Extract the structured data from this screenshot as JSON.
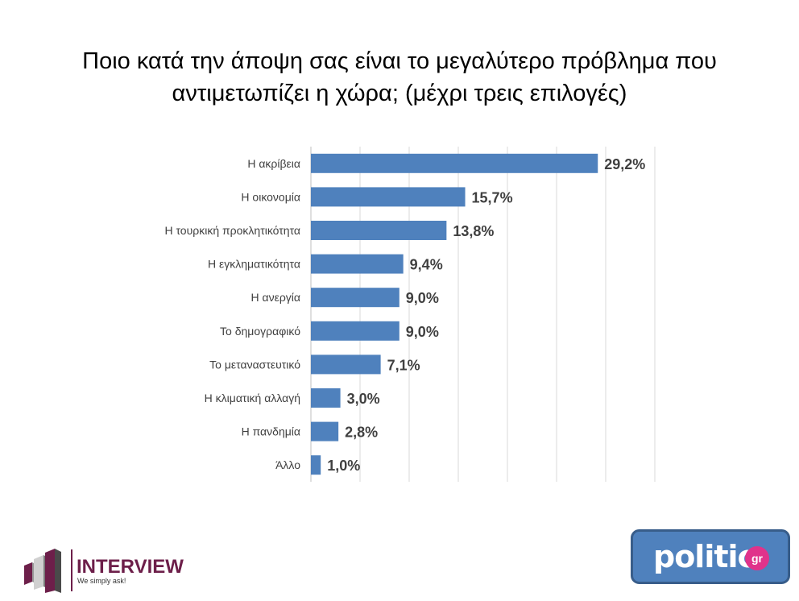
{
  "title_line1": "Ποιο κατά την άποψη σας είναι το μεγαλύτερο πρόβλημα που",
  "title_line2": "αντιμετωπίζει η χώρα; (μέχρι τρεις επιλογές)",
  "chart_data": {
    "type": "bar",
    "orientation": "horizontal",
    "categories": [
      "Η ακρίβεια",
      "Η οικονομία",
      "Η τουρκική προκλητικότητα",
      "Η εγκληματικότητα",
      "Η ανεργία",
      "Το δημογραφικό",
      "Το μεταναστευτικό",
      "Η κλιματική αλλαγή",
      "Η πανδημία",
      "Άλλο"
    ],
    "values": [
      29.2,
      15.7,
      13.8,
      9.4,
      9.0,
      9.0,
      7.1,
      3.0,
      2.8,
      1.0
    ],
    "value_labels": [
      "29,2%",
      "15,7%",
      "13,8%",
      "9,4%",
      "9,0%",
      "9,0%",
      "7,1%",
      "3,0%",
      "2,8%",
      "1,0%"
    ],
    "xlim": [
      0,
      35
    ],
    "grid": "vertical",
    "bar_color": "#4f81bd"
  },
  "logos": {
    "interview": {
      "name": "INTERVIEW",
      "tagline": "We simply ask!",
      "color": "#6d1f4a"
    },
    "politic": {
      "name": "politic",
      "suffix": "gr",
      "bg": "#4f81bd",
      "accent": "#e0338b"
    }
  }
}
